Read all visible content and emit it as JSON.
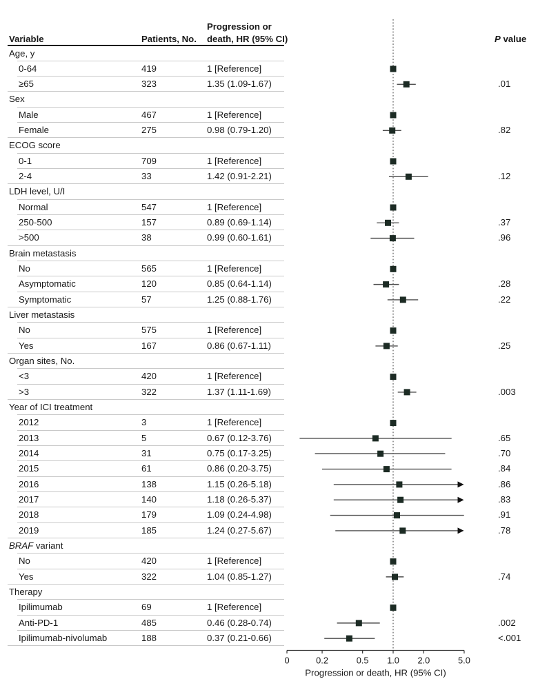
{
  "chart_data": {
    "type": "forest",
    "xlabel": "Progression or death, HR (95% CI)",
    "x_scale": "log",
    "x_ticks": [
      0,
      0.2,
      0.5,
      1.0,
      2.0,
      5.0
    ],
    "x_tick_labels": [
      "0",
      "0.2",
      "0.5",
      "1.0",
      "2.0",
      "5.0"
    ],
    "reference_line": 1.0,
    "legend_position": "none",
    "grid": false,
    "colors": {
      "marker": "#1c2b24",
      "ci_line": "#4d4d4d",
      "reference_dotted_line": "#4a4a4a",
      "row_rule": "#c9c9c9",
      "header_rule": "#1c1c1c",
      "text": "#191919"
    },
    "columns": {
      "variable": "Variable",
      "patients": "Patients, No.",
      "hr_line1": "Progression or",
      "hr_line2": "death, HR (95% CI)",
      "p_italic": "P",
      "p_rest": " value"
    },
    "rows": [
      {
        "type": "category",
        "label": "Age, y"
      },
      {
        "type": "item",
        "label": "0-64",
        "patients": "419",
        "hr_text": "1 [Reference]",
        "est": 1,
        "ref": true
      },
      {
        "type": "item",
        "label": "≥65",
        "patients": "323",
        "hr_text": "1.35 (1.09-1.67)",
        "est": 1.35,
        "lo": 1.09,
        "hi": 1.67,
        "p": ".01"
      },
      {
        "type": "category",
        "label": "Sex"
      },
      {
        "type": "item",
        "label": "Male",
        "patients": "467",
        "hr_text": "1 [Reference]",
        "est": 1,
        "ref": true
      },
      {
        "type": "item",
        "label": "Female",
        "patients": "275",
        "hr_text": "0.98 (0.79-1.20)",
        "est": 0.98,
        "lo": 0.79,
        "hi": 1.2,
        "p": ".82"
      },
      {
        "type": "category",
        "label": "ECOG score"
      },
      {
        "type": "item",
        "label": "0-1",
        "patients": "709",
        "hr_text": "1 [Reference]",
        "est": 1,
        "ref": true
      },
      {
        "type": "item",
        "label": "2-4",
        "patients": "33",
        "hr_text": "1.42 (0.91-2.21)",
        "est": 1.42,
        "lo": 0.91,
        "hi": 2.21,
        "p": ".12"
      },
      {
        "type": "category",
        "label": "LDH level, U/I"
      },
      {
        "type": "item",
        "label": "Normal",
        "patients": "547",
        "hr_text": "1 [Reference]",
        "est": 1,
        "ref": true
      },
      {
        "type": "item",
        "label": "250-500",
        "patients": "157",
        "hr_text": "0.89 (0.69-1.14)",
        "est": 0.89,
        "lo": 0.69,
        "hi": 1.14,
        "p": ".37"
      },
      {
        "type": "item",
        "label": ">500",
        "patients": "38",
        "hr_text": "0.99 (0.60-1.61)",
        "est": 0.99,
        "lo": 0.6,
        "hi": 1.61,
        "p": ".96"
      },
      {
        "type": "category",
        "label": "Brain metastasis"
      },
      {
        "type": "item",
        "label": "No",
        "patients": "565",
        "hr_text": "1 [Reference]",
        "est": 1,
        "ref": true
      },
      {
        "type": "item",
        "label": "Asymptomatic",
        "patients": "120",
        "hr_text": "0.85 (0.64-1.14)",
        "est": 0.85,
        "lo": 0.64,
        "hi": 1.14,
        "p": ".28"
      },
      {
        "type": "item",
        "label": "Symptomatic",
        "patients": "57",
        "hr_text": "1.25 (0.88-1.76)",
        "est": 1.25,
        "lo": 0.88,
        "hi": 1.76,
        "p": ".22"
      },
      {
        "type": "category",
        "label": "Liver metastasis"
      },
      {
        "type": "item",
        "label": "No",
        "patients": "575",
        "hr_text": "1 [Reference]",
        "est": 1,
        "ref": true
      },
      {
        "type": "item",
        "label": "Yes",
        "patients": "167",
        "hr_text": "0.86 (0.67-1.11)",
        "est": 0.86,
        "lo": 0.67,
        "hi": 1.11,
        "p": ".25"
      },
      {
        "type": "category",
        "label": "Organ sites, No."
      },
      {
        "type": "item",
        "label": "<3",
        "patients": "420",
        "hr_text": "1 [Reference]",
        "est": 1,
        "ref": true
      },
      {
        "type": "item",
        "label": ">3",
        "patients": "322",
        "hr_text": "1.37 (1.11-1.69)",
        "est": 1.37,
        "lo": 1.11,
        "hi": 1.69,
        "p": ".003"
      },
      {
        "type": "category",
        "label": "Year of ICI treatment"
      },
      {
        "type": "item",
        "label": "2012",
        "patients": "3",
        "hr_text": "1 [Reference]",
        "est": 1,
        "ref": true
      },
      {
        "type": "item",
        "label": "2013",
        "patients": "5",
        "hr_text": "0.67 (0.12-3.76)",
        "est": 0.67,
        "lo": 0.12,
        "hi": 3.76,
        "p": ".65"
      },
      {
        "type": "item",
        "label": "2014",
        "patients": "31",
        "hr_text": "0.75 (0.17-3.25)",
        "est": 0.75,
        "lo": 0.17,
        "hi": 3.25,
        "p": ".70"
      },
      {
        "type": "item",
        "label": "2015",
        "patients": "61",
        "hr_text": "0.86 (0.20-3.75)",
        "est": 0.86,
        "lo": 0.2,
        "hi": 3.75,
        "p": ".84"
      },
      {
        "type": "item",
        "label": "2016",
        "patients": "138",
        "hr_text": "1.15 (0.26-5.18)",
        "est": 1.15,
        "lo": 0.26,
        "hi": 5.18,
        "p": ".86",
        "arrow": true
      },
      {
        "type": "item",
        "label": "2017",
        "patients": "140",
        "hr_text": "1.18 (0.26-5.37)",
        "est": 1.18,
        "lo": 0.26,
        "hi": 5.37,
        "p": ".83",
        "arrow": true
      },
      {
        "type": "item",
        "label": "2018",
        "patients": "179",
        "hr_text": "1.09 (0.24-4.98)",
        "est": 1.09,
        "lo": 0.24,
        "hi": 4.98,
        "p": ".91"
      },
      {
        "type": "item",
        "label": "2019",
        "patients": "185",
        "hr_text": "1.24 (0.27-5.67)",
        "est": 1.24,
        "lo": 0.27,
        "hi": 5.67,
        "p": ".78",
        "arrow": true
      },
      {
        "type": "category",
        "label_italic": "BRAF",
        "label": " variant"
      },
      {
        "type": "item",
        "label": "No",
        "patients": "420",
        "hr_text": "1 [Reference]",
        "est": 1,
        "ref": true
      },
      {
        "type": "item",
        "label": "Yes",
        "patients": "322",
        "hr_text": "1.04 (0.85-1.27)",
        "est": 1.04,
        "lo": 0.85,
        "hi": 1.27,
        "p": ".74"
      },
      {
        "type": "category",
        "label": "Therapy"
      },
      {
        "type": "item",
        "label": "Ipilimumab",
        "patients": "69",
        "hr_text": "1 [Reference]",
        "est": 1,
        "ref": true
      },
      {
        "type": "item",
        "label": "Anti-PD-1",
        "patients": "485",
        "hr_text": "0.46 (0.28-0.74)",
        "est": 0.46,
        "lo": 0.28,
        "hi": 0.74,
        "p": ".002"
      },
      {
        "type": "item",
        "label": "Ipilimumab-nivolumab",
        "patients": "188",
        "hr_text": "0.37 (0.21-0.66)",
        "est": 0.37,
        "lo": 0.21,
        "hi": 0.66,
        "p": "<.001"
      }
    ]
  }
}
